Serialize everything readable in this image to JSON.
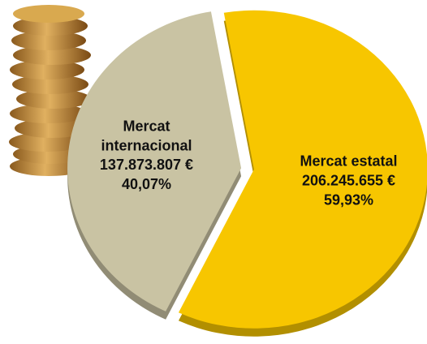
{
  "chart_data": {
    "type": "pie",
    "categories": [
      "Mercat internacional",
      "Mercat estatal"
    ],
    "values": [
      40.07,
      59.93
    ],
    "value_labels": [
      "40,07%",
      "59,93%"
    ],
    "amounts": [
      137873807,
      206245655
    ],
    "amount_labels": [
      "137.873.807 €",
      "206.245.655 €"
    ],
    "colors": [
      "#c9c3a3",
      "#f7c600"
    ]
  }
}
